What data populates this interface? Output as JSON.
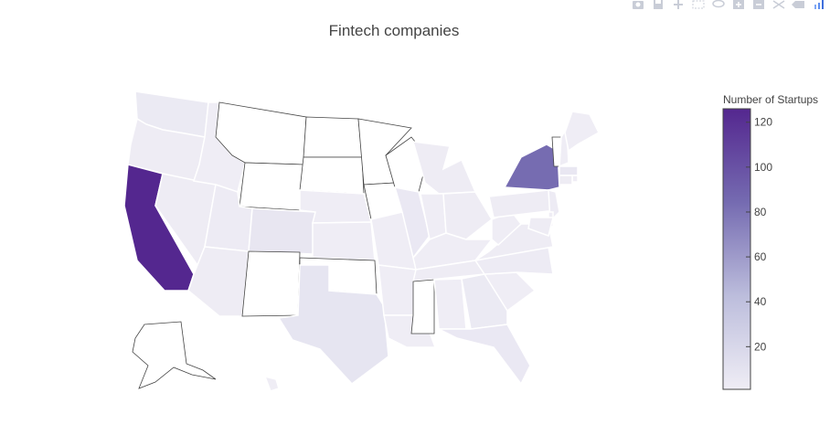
{
  "modebar": {
    "buttons": [
      "camera-icon",
      "save-icon",
      "pan-icon",
      "box-select-icon",
      "lasso-icon",
      "zoom-in-icon",
      "zoom-out-icon",
      "autoscale-icon",
      "hover-icon",
      "plotly-logo"
    ]
  },
  "chart_data": {
    "type": "choropleth",
    "title": "Fintech companies",
    "scope": "usa",
    "colorbar": {
      "title": "Number of Startups",
      "range": [
        1,
        126
      ],
      "ticks": [
        20,
        40,
        60,
        80,
        100,
        120
      ],
      "colorscale": [
        "#efedf5",
        "#bcbddc",
        "#756bb1",
        "#54278f"
      ]
    },
    "states": [
      {
        "state": "CA",
        "value": 126
      },
      {
        "state": "NY",
        "value": 84
      },
      {
        "state": "TX",
        "value": 8
      },
      {
        "state": "CO",
        "value": 7
      },
      {
        "state": "MA",
        "value": 6
      },
      {
        "state": "IL",
        "value": 5
      },
      {
        "state": "FL",
        "value": 5
      },
      {
        "state": "GA",
        "value": 4
      },
      {
        "state": "WA",
        "value": 4
      },
      {
        "state": "NJ",
        "value": 3
      },
      {
        "state": "UT",
        "value": 3
      },
      {
        "state": "NC",
        "value": 3
      },
      {
        "state": "PA",
        "value": 2
      },
      {
        "state": "OR",
        "value": 2
      },
      {
        "state": "NV",
        "value": 2
      },
      {
        "state": "AZ",
        "value": 2
      },
      {
        "state": "VA",
        "value": 2
      },
      {
        "state": "OH",
        "value": 2
      },
      {
        "state": "MI",
        "value": 2
      },
      {
        "state": "MD",
        "value": 2
      },
      {
        "state": "CT",
        "value": 2
      },
      {
        "state": "TN",
        "value": 2
      },
      {
        "state": "MO",
        "value": 1
      },
      {
        "state": "IN",
        "value": 1
      },
      {
        "state": "KS",
        "value": 1
      },
      {
        "state": "NE",
        "value": 1
      },
      {
        "state": "ID",
        "value": 1
      },
      {
        "state": "ME",
        "value": 1
      },
      {
        "state": "NH",
        "value": 1
      },
      {
        "state": "SC",
        "value": 1
      },
      {
        "state": "AL",
        "value": 1
      },
      {
        "state": "LA",
        "value": 1
      },
      {
        "state": "AR",
        "value": 1
      },
      {
        "state": "HI",
        "value": 1
      },
      {
        "state": "DE",
        "value": 1
      },
      {
        "state": "RI",
        "value": 1
      },
      {
        "state": "WV",
        "value": 1
      },
      {
        "state": "KY",
        "value": 1
      }
    ]
  }
}
